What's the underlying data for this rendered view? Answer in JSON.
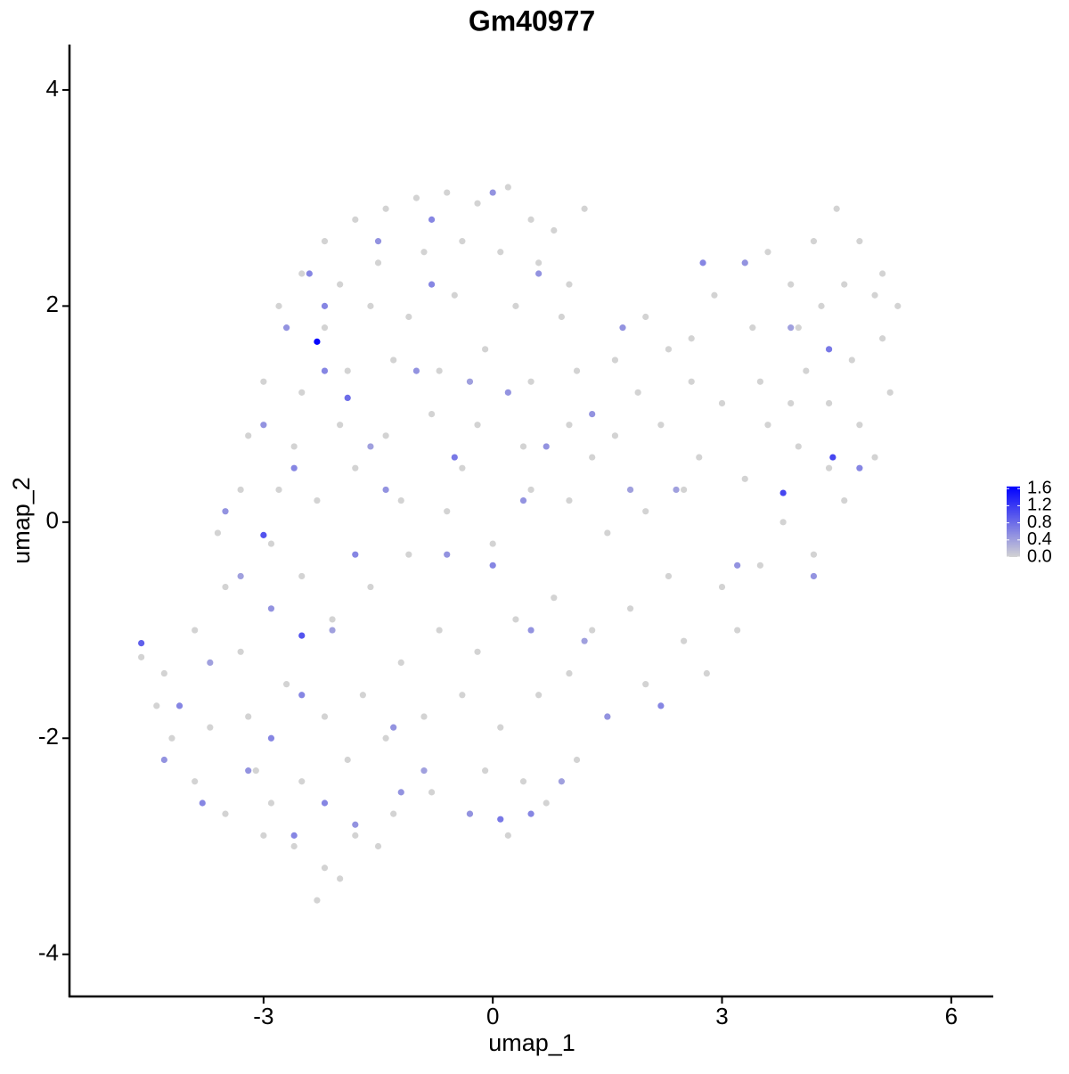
{
  "chart_data": {
    "type": "scatter",
    "title": "Gm40977",
    "x_label": "umap_1",
    "y_label": "umap_2",
    "xlim": [
      -5.54,
      6.55
    ],
    "ylim": [
      -4.39,
      4.42
    ],
    "xticks": [
      -3,
      0,
      3,
      6
    ],
    "yticks": [
      -4,
      -2,
      0,
      2,
      4
    ],
    "x": [
      -2.2,
      -1.8,
      -1.4,
      -1.0,
      -0.6,
      -0.2,
      0.2,
      0.5,
      0.8,
      1.2,
      -2.5,
      -2.0,
      -1.5,
      -0.9,
      -0.4,
      0.1,
      0.6,
      1.0,
      -2.8,
      -2.2,
      -1.6,
      -1.1,
      -0.5,
      0.3,
      0.9,
      -3.0,
      -2.5,
      -1.9,
      -1.3,
      -0.7,
      -0.1,
      0.5,
      1.1,
      1.6,
      2.0,
      -3.2,
      -2.6,
      -2.0,
      -1.4,
      -0.8,
      -0.2,
      0.4,
      1.0,
      1.6,
      2.2,
      2.6,
      2.9,
      3.3,
      3.6,
      3.9,
      4.2,
      4.5,
      4.8,
      5.1,
      5.3,
      4.6,
      4.0,
      3.4,
      2.6,
      3.0,
      3.5,
      4.1,
      4.7,
      5.1,
      5.2,
      4.8,
      4.4,
      4.0,
      3.6,
      3.3,
      4.6,
      5.0,
      3.8,
      3.5,
      4.2,
      3.0,
      3.2,
      2.5,
      2.8,
      2.0,
      1.5,
      1.1,
      0.7,
      0.2,
      -0.3,
      -0.8,
      -1.3,
      -1.8,
      -2.2,
      -2.6,
      -3.0,
      -3.5,
      -3.9,
      -4.2,
      -4.4,
      -4.3,
      -4.6,
      -3.9,
      -3.5,
      -3.6,
      -3.3,
      -2.9,
      -2.5,
      -2.1,
      -1.6,
      -1.1,
      -0.6,
      0.0,
      0.5,
      1.0,
      1.5,
      2.0,
      2.5,
      2.3,
      1.8,
      1.3,
      0.8,
      0.3,
      -0.2,
      -0.7,
      -1.2,
      -1.7,
      -2.2,
      -2.7,
      -3.2,
      -3.7,
      -3.1,
      -2.5,
      -1.9,
      -1.4,
      -0.9,
      -0.4,
      0.1,
      0.6,
      1.0,
      -0.1,
      0.4,
      -2.3,
      -2.0,
      -2.9,
      -1.5,
      -3.3,
      -2.8,
      -2.3,
      -1.8,
      -1.2,
      -0.4,
      1.3,
      1.9,
      2.3,
      2.7,
      3.9,
      4.4,
      4.3,
      5.0,
      -2.3,
      3.8,
      4.45,
      -3.0,
      -2.5,
      -4.6,
      -1.9,
      -2.4,
      -1.5,
      -0.8,
      0.0,
      0.6,
      -2.7,
      -2.2,
      -1.0,
      -0.3,
      0.2,
      -3.0,
      -2.6,
      -1.6,
      -0.5,
      0.7,
      1.3,
      1.7,
      2.4,
      2.75,
      3.3,
      3.9,
      4.4,
      4.8,
      4.2,
      3.2,
      2.2,
      1.5,
      0.9,
      0.5,
      0.1,
      -0.3,
      -0.9,
      -1.3,
      -1.8,
      -2.2,
      -2.6,
      -3.2,
      -3.8,
      -4.1,
      -4.3,
      -3.7,
      -2.9,
      -2.1,
      -1.8,
      -1.4,
      -0.6,
      0.0,
      0.5,
      1.2,
      -3.5,
      -3.3,
      -2.5,
      -1.2,
      0.4,
      1.8,
      -2.9,
      -2.2,
      -0.8
    ],
    "y": [
      2.6,
      2.8,
      2.9,
      3.0,
      3.05,
      2.95,
      3.1,
      2.8,
      2.7,
      2.9,
      2.3,
      2.2,
      2.4,
      2.5,
      2.6,
      2.5,
      2.4,
      2.2,
      2.0,
      1.8,
      2.0,
      1.9,
      2.1,
      2.0,
      1.9,
      1.3,
      1.2,
      1.4,
      1.5,
      1.4,
      1.6,
      1.3,
      1.4,
      1.5,
      1.9,
      0.8,
      0.7,
      0.9,
      0.8,
      1.0,
      0.9,
      0.7,
      0.9,
      0.8,
      0.9,
      1.3,
      2.1,
      2.4,
      2.5,
      2.2,
      2.6,
      2.9,
      2.6,
      2.3,
      2.0,
      2.2,
      1.8,
      1.8,
      1.7,
      1.1,
      1.3,
      1.4,
      1.5,
      1.7,
      1.2,
      0.9,
      0.5,
      0.7,
      0.9,
      0.4,
      0.2,
      0.6,
      0.0,
      -0.4,
      -0.3,
      -0.6,
      -1.0,
      -1.1,
      -1.4,
      -1.5,
      -1.8,
      -2.2,
      -2.6,
      -2.9,
      -2.7,
      -2.5,
      -2.7,
      -2.9,
      -3.2,
      -3.0,
      -2.9,
      -2.7,
      -2.4,
      -2.0,
      -1.7,
      -1.4,
      -1.25,
      -1.0,
      -0.6,
      -0.1,
      0.3,
      -0.2,
      -0.5,
      -0.9,
      -0.6,
      -0.3,
      0.1,
      -0.2,
      0.3,
      0.2,
      -0.1,
      0.1,
      0.3,
      -0.5,
      -0.8,
      -1.0,
      -0.7,
      -0.9,
      -1.2,
      -1.0,
      -1.3,
      -1.6,
      -1.8,
      -1.5,
      -1.8,
      -1.9,
      -2.3,
      -2.4,
      -2.2,
      -2.0,
      -1.8,
      -1.6,
      -1.9,
      -1.6,
      -1.4,
      -2.3,
      -2.4,
      -3.5,
      -3.3,
      -2.6,
      -3.0,
      -1.2,
      0.3,
      0.2,
      0.5,
      0.2,
      0.5,
      0.6,
      1.2,
      1.6,
      0.6,
      1.1,
      1.1,
      2.0,
      2.1,
      1.67,
      0.27,
      0.6,
      -0.12,
      -1.05,
      -1.12,
      1.15,
      2.3,
      2.6,
      2.8,
      3.05,
      2.3,
      1.8,
      1.4,
      1.4,
      1.3,
      1.2,
      0.9,
      0.5,
      0.7,
      0.6,
      0.7,
      1.0,
      1.8,
      0.3,
      2.4,
      2.4,
      1.8,
      1.6,
      0.5,
      -0.5,
      -0.4,
      -1.7,
      -1.8,
      -2.4,
      -2.7,
      -2.75,
      -2.7,
      -2.3,
      -1.9,
      -2.8,
      -2.6,
      -2.9,
      -2.3,
      -2.6,
      -1.7,
      -2.2,
      -1.3,
      -0.8,
      -1.0,
      -0.3,
      0.3,
      -0.3,
      -0.4,
      -1.0,
      -1.1,
      0.1,
      -0.5,
      -1.6,
      -2.5,
      0.2,
      0.3,
      -2.0,
      2.0,
      2.2
    ],
    "values": [
      0,
      0,
      0,
      0,
      0,
      0,
      0,
      0,
      0,
      0,
      0,
      0,
      0,
      0,
      0,
      0,
      0,
      0,
      0,
      0,
      0,
      0,
      0,
      0,
      0,
      0,
      0,
      0,
      0,
      0,
      0,
      0,
      0,
      0,
      0,
      0,
      0,
      0,
      0,
      0,
      0,
      0,
      0,
      0,
      0,
      0,
      0,
      0,
      0,
      0,
      0,
      0,
      0,
      0,
      0,
      0,
      0,
      0,
      0,
      0,
      0,
      0,
      0,
      0,
      0,
      0,
      0,
      0,
      0,
      0,
      0,
      0,
      0,
      0,
      0,
      0,
      0,
      0,
      0,
      0,
      0,
      0,
      0,
      0,
      0,
      0,
      0,
      0,
      0,
      0,
      0,
      0,
      0,
      0,
      0,
      0,
      0,
      0,
      0,
      0,
      0,
      0,
      0,
      0,
      0,
      0,
      0,
      0,
      0,
      0,
      0,
      0,
      0,
      0,
      0,
      0,
      0,
      0,
      0,
      0,
      0,
      0,
      0,
      0,
      0,
      0,
      0,
      0,
      0,
      0,
      0,
      0,
      0,
      0,
      0,
      0,
      0,
      0,
      0,
      0,
      0,
      0,
      0,
      0,
      0,
      0,
      0,
      0,
      0,
      0,
      0,
      0,
      0,
      0,
      0,
      1.6,
      1.1,
      1.1,
      1.0,
      1.0,
      0.9,
      0.8,
      0.6,
      0.5,
      0.6,
      0.5,
      0.5,
      0.5,
      0.6,
      0.5,
      0.4,
      0.5,
      0.5,
      0.6,
      0.4,
      0.7,
      0.5,
      0.5,
      0.5,
      0.4,
      0.6,
      0.5,
      0.4,
      0.7,
      0.6,
      0.5,
      0.5,
      0.6,
      0.5,
      0.4,
      0.6,
      0.7,
      0.5,
      0.4,
      0.5,
      0.5,
      0.6,
      0.6,
      0.5,
      0.6,
      0.6,
      0.5,
      0.4,
      0.5,
      0.4,
      0.6,
      0.5,
      0.5,
      0.6,
      0.5,
      0.4,
      0.5,
      0.4,
      0.6,
      0.5,
      0.5,
      0.4,
      0.6,
      0.6,
      0.6
    ],
    "colorbar": {
      "lim": [
        0,
        1.65
      ],
      "ticks": [
        {
          "value": 0,
          "label": "0.0"
        },
        0.4,
        0.8,
        1.2,
        1.6
      ],
      "low_color": "#d3d3d3",
      "high_color": "#0000ff"
    }
  }
}
